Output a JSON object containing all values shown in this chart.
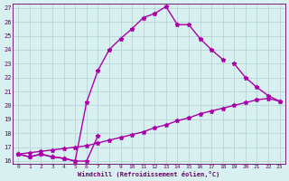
{
  "xlabel": "Windchill (Refroidissement éolien,°C)",
  "ylim": [
    16,
    27
  ],
  "xlim": [
    0,
    23
  ],
  "line_color": "#aa00aa",
  "bg_color": "#d8f0f0",
  "grid_color": "#b0d0d0",
  "tick_label_color": "#660066",
  "marker": "*",
  "markersize": 3.5,
  "linewidth": 1.0,
  "line_spike_x": [
    0,
    1,
    2,
    3,
    4,
    5,
    6,
    7,
    8,
    9,
    10,
    11,
    12,
    13,
    14,
    15,
    16,
    17,
    18
  ],
  "line_spike_y": [
    16.5,
    16.3,
    16.5,
    16.3,
    16.2,
    16.0,
    20.2,
    22.5,
    24.0,
    24.8,
    25.5,
    26.3,
    26.6,
    27.1,
    25.8,
    25.8,
    24.8,
    24.0,
    23.3
  ],
  "line_straight_x": [
    0,
    1,
    2,
    3,
    4,
    5,
    6,
    7,
    8,
    9,
    10,
    11,
    12,
    13,
    14,
    15,
    16,
    17,
    18,
    19,
    20,
    21,
    22,
    23
  ],
  "line_straight_y": [
    16.5,
    16.6,
    16.7,
    16.8,
    16.9,
    17.0,
    17.1,
    17.3,
    17.5,
    17.7,
    17.9,
    18.1,
    18.4,
    18.6,
    18.9,
    19.1,
    19.4,
    19.6,
    19.8,
    20.0,
    20.2,
    20.4,
    20.5,
    20.3
  ],
  "line_third_x": [
    0,
    1,
    2,
    3,
    4,
    5,
    6,
    7,
    19,
    20,
    21,
    22,
    23
  ],
  "line_third_y": [
    16.5,
    16.3,
    16.5,
    16.3,
    16.2,
    16.0,
    16.0,
    17.8,
    23.0,
    22.0,
    21.3,
    20.7,
    20.3
  ]
}
